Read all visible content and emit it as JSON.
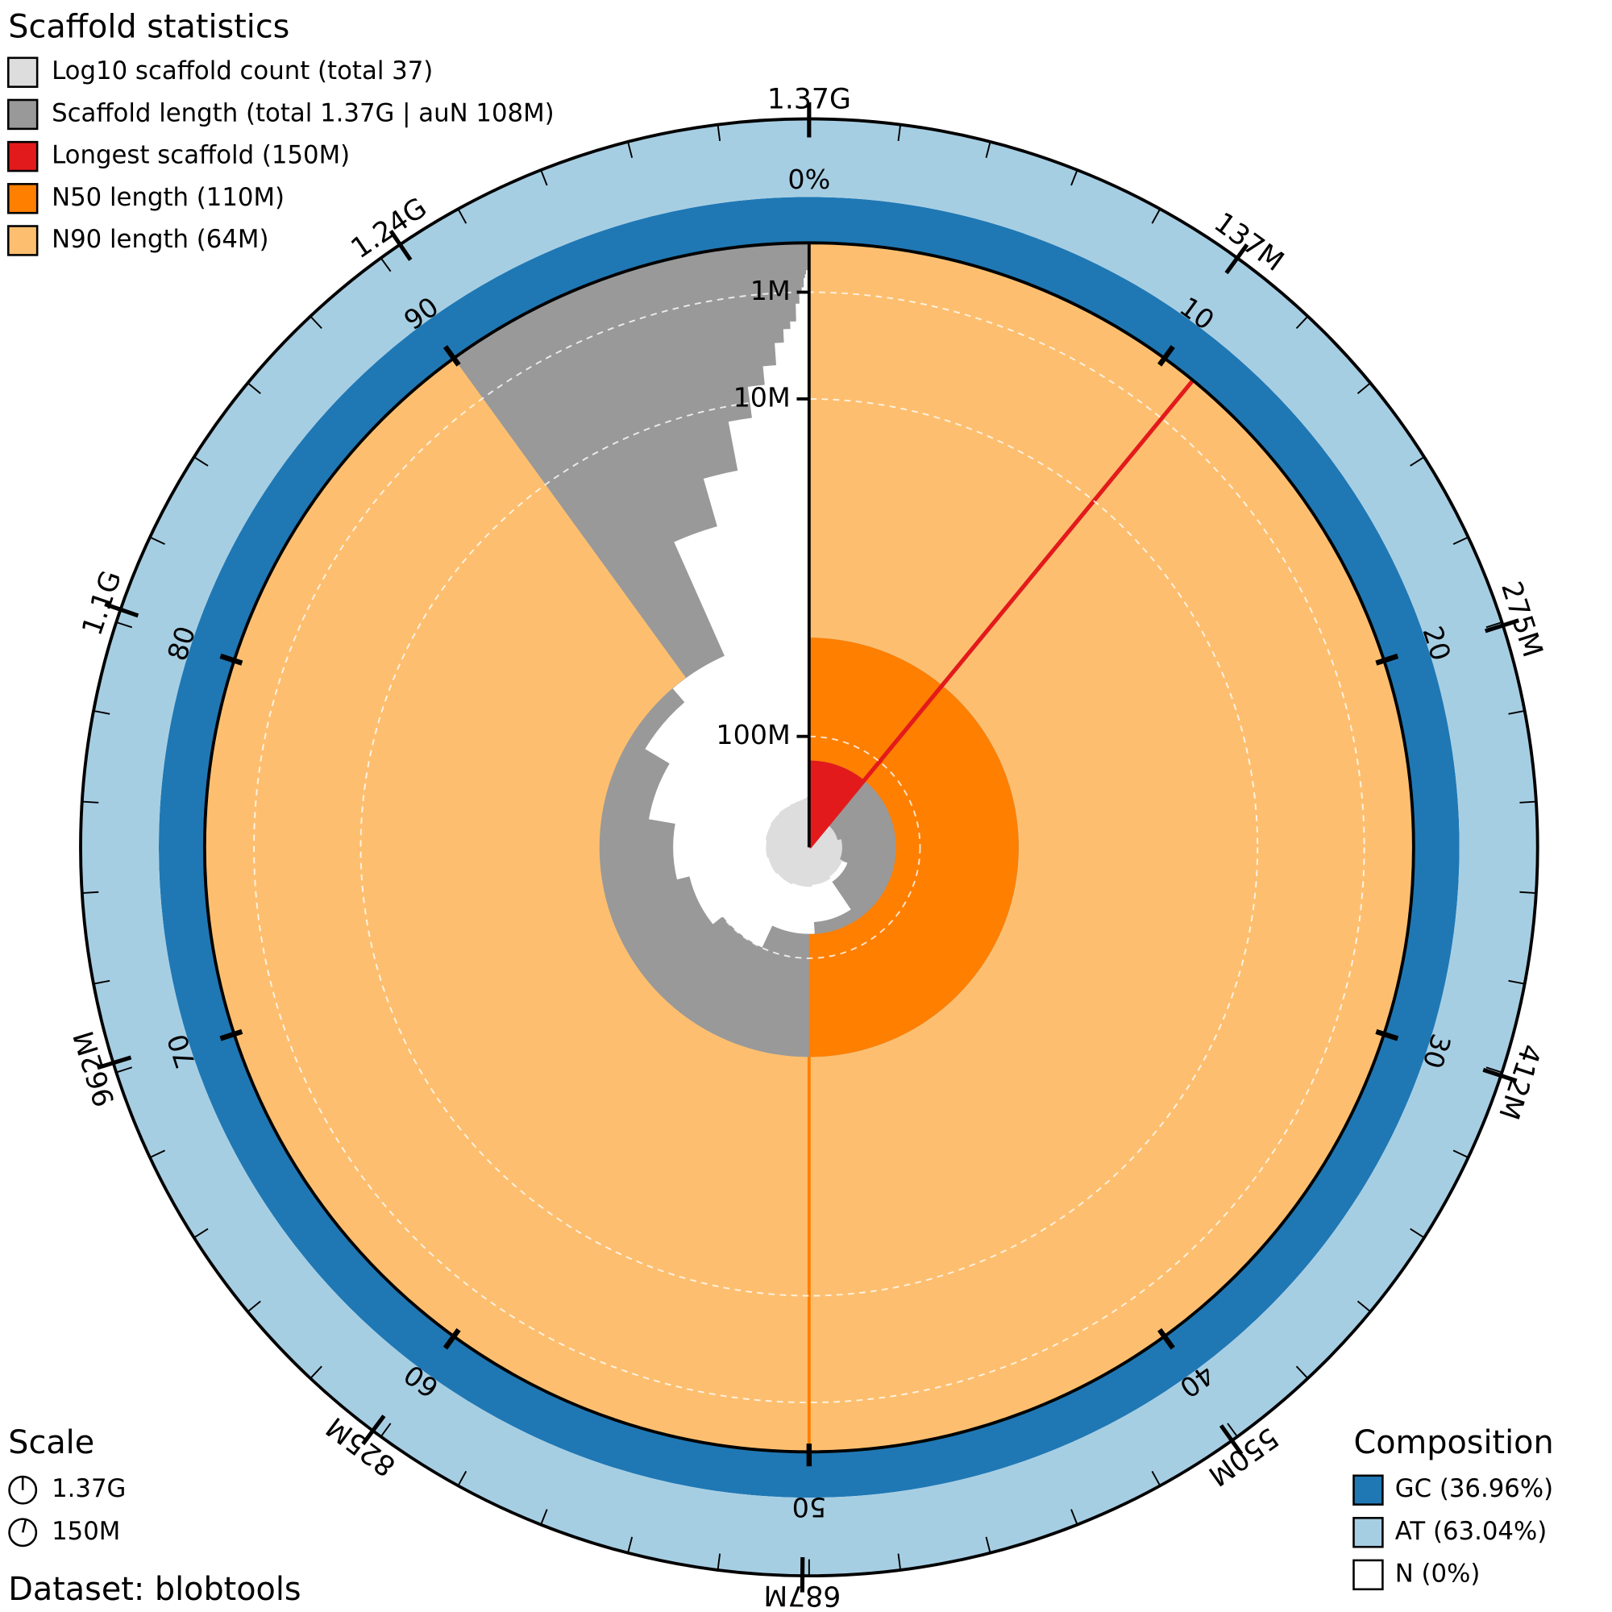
{
  "chart_data": {
    "type": "snail",
    "title": "Scaffold statistics",
    "legend": [
      {
        "label": "Log10 scaffold count (total 37)",
        "color": "#dddddd"
      },
      {
        "label": "Scaffold length (total 1.37G | auN 108M)",
        "color": "#999999"
      },
      {
        "label": "Longest scaffold (150M)",
        "color": "#e31a1c"
      },
      {
        "label": "N50 length (110M)",
        "color": "#ff7f00"
      },
      {
        "label": "N90 length (64M)",
        "color": "#fdbf6f"
      }
    ],
    "scaffold_count": 37,
    "scaffold_lengths": [
      150000000,
      140000000,
      135000000,
      130000000,
      115000000,
      110000000,
      100000000,
      95000000,
      90000000,
      80000000,
      70000000,
      64000000,
      30000000,
      20000000,
      12000000,
      8000000,
      6000000,
      4000000,
      3000000,
      2500000,
      1500000,
      1000000,
      800000,
      500000,
      400000,
      300000,
      300000,
      200000,
      200000,
      50000,
      50000,
      40000,
      40000,
      40000,
      30000,
      30000,
      20000
    ],
    "longest": 150000000,
    "n50": {
      "value": 110000000,
      "percent": 50
    },
    "n90": {
      "value": 64000000,
      "percent": 90
    },
    "xlim": [
      0,
      1370000000
    ],
    "xticks": [
      {
        "value": 137000000,
        "label": "137M"
      },
      {
        "value": 275000000,
        "label": "275M"
      },
      {
        "value": 412000000,
        "label": "412M"
      },
      {
        "value": 550000000,
        "label": "550M"
      },
      {
        "value": 687000000,
        "label": "687M"
      },
      {
        "value": 825000000,
        "label": "825M"
      },
      {
        "value": 962000000,
        "label": "962M"
      },
      {
        "value": 1100000000,
        "label": "1.1G"
      },
      {
        "value": 1240000000,
        "label": "1.24G"
      },
      {
        "value": 1370000000,
        "label": "1.37G"
      }
    ],
    "percent_lim": [
      0,
      100
    ],
    "percent_ticks": [
      10,
      20,
      30,
      40,
      50,
      60,
      70,
      80,
      90
    ],
    "percent_origin_label": "0%",
    "rscale": "sqrt",
    "rlim": [
      150000000,
      0
    ],
    "rticks": [
      {
        "value": 1000000,
        "label": "1M"
      },
      {
        "value": 10000000,
        "label": "10M"
      },
      {
        "value": 100000000,
        "label": "100M"
      }
    ],
    "scale_title": "Scale",
    "scale_items": [
      "1.37G",
      "150M"
    ],
    "dataset": "Dataset: blobtools",
    "composition_title": "Composition",
    "composition": [
      {
        "name": "GC (36.96%)",
        "value": 36.96,
        "color": "#1f78b4"
      },
      {
        "name": "AT (63.04%)",
        "value": 63.04,
        "color": "#a6cee3"
      },
      {
        "name": "N (0%)",
        "value": 0,
        "color": "#ffffff"
      }
    ]
  }
}
